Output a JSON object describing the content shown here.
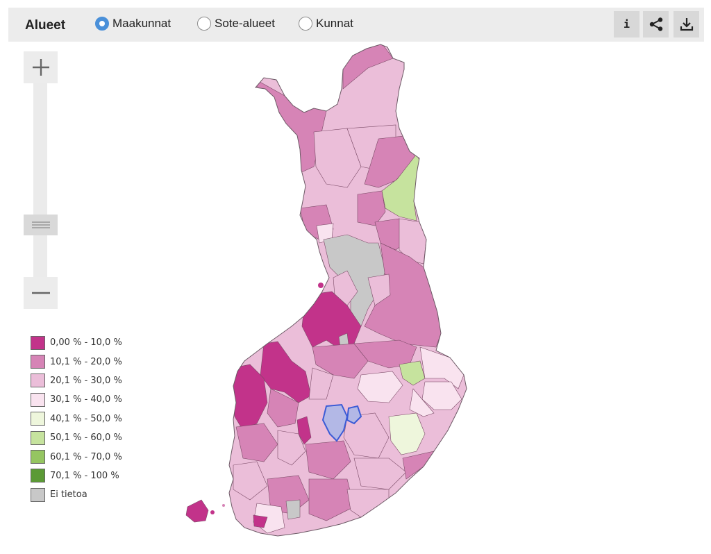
{
  "toolbar": {
    "title": "Alueet",
    "options": [
      {
        "label": "Maakunnat",
        "checked": true
      },
      {
        "label": "Sote-alueet",
        "checked": false
      },
      {
        "label": "Kunnat",
        "checked": false
      }
    ],
    "info_label": "i"
  },
  "legend": {
    "items": [
      {
        "label": "0,00 % - 10,0 %",
        "color": "#c2338a"
      },
      {
        "label": "10,1 % - 20,0 %",
        "color": "#d684b6"
      },
      {
        "label": "20,1 % - 30,0 %",
        "color": "#ebbed9"
      },
      {
        "label": "30,1 % - 40,0 %",
        "color": "#f9e3ef"
      },
      {
        "label": "40,1 % - 50,0 %",
        "color": "#eef6dc"
      },
      {
        "label": "50,1 % - 60,0 %",
        "color": "#c6e39e"
      },
      {
        "label": "60,1 % - 70,0 %",
        "color": "#95c561"
      },
      {
        "label": "70,1 % - 100 %",
        "color": "#5b9a35"
      },
      {
        "label": "Ei tietoa",
        "color": "#c8c8c8"
      }
    ]
  },
  "map": {
    "highlight_color": "#3b5bd6",
    "colors": {
      "dark": "#c2338a",
      "mid": "#d684b6",
      "light": "#ebbed9",
      "pale": "#f9e3ef",
      "lightgreen": "#c6e39e",
      "palegreen": "#eef6dc",
      "nodata": "#c8c8c8",
      "selected": "#b3b8e6"
    }
  }
}
